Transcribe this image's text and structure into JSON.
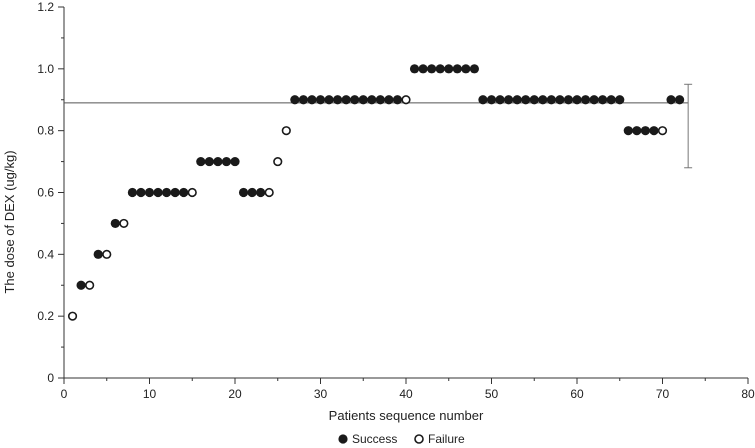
{
  "chart_data": {
    "type": "scatter",
    "xlabel": "Patients sequence number",
    "ylabel": "The dose of DEX (ug/kg)",
    "xlim": [
      0,
      80
    ],
    "ylim": [
      0,
      1.2
    ],
    "x_ticks": [
      0,
      10,
      20,
      30,
      40,
      50,
      60,
      70,
      80
    ],
    "y_ticks": [
      0,
      0.2,
      0.4,
      0.6,
      0.8,
      1.0,
      1.2
    ],
    "x_tick_labels": [
      "0",
      "10",
      "20",
      "30",
      "40",
      "50",
      "60",
      "70",
      "80"
    ],
    "y_tick_labels": [
      "0",
      "0.2",
      "0.4",
      "0.6",
      "0.8",
      "1.0",
      "1.2"
    ],
    "grid": false,
    "legend_position": "bottom-center",
    "reference_line": {
      "y": 0.89,
      "x_range": [
        0,
        73
      ]
    },
    "error_bar": {
      "x": 73,
      "center": 0.89,
      "low": 0.68,
      "high": 0.95
    },
    "series": [
      {
        "name": "Success",
        "marker": "filled-circle",
        "color": "#1a1a1a",
        "points": [
          [
            2,
            0.3
          ],
          [
            4,
            0.4
          ],
          [
            6,
            0.5
          ],
          [
            8,
            0.6
          ],
          [
            9,
            0.6
          ],
          [
            10,
            0.6
          ],
          [
            11,
            0.6
          ],
          [
            12,
            0.6
          ],
          [
            13,
            0.6
          ],
          [
            14,
            0.6
          ],
          [
            16,
            0.7
          ],
          [
            17,
            0.7
          ],
          [
            18,
            0.7
          ],
          [
            19,
            0.7
          ],
          [
            20,
            0.7
          ],
          [
            21,
            0.6
          ],
          [
            22,
            0.6
          ],
          [
            23,
            0.6
          ],
          [
            27,
            0.9
          ],
          [
            28,
            0.9
          ],
          [
            29,
            0.9
          ],
          [
            30,
            0.9
          ],
          [
            31,
            0.9
          ],
          [
            32,
            0.9
          ],
          [
            33,
            0.9
          ],
          [
            34,
            0.9
          ],
          [
            35,
            0.9
          ],
          [
            36,
            0.9
          ],
          [
            37,
            0.9
          ],
          [
            38,
            0.9
          ],
          [
            39,
            0.9
          ],
          [
            41,
            1.0
          ],
          [
            42,
            1.0
          ],
          [
            43,
            1.0
          ],
          [
            44,
            1.0
          ],
          [
            45,
            1.0
          ],
          [
            46,
            1.0
          ],
          [
            47,
            1.0
          ],
          [
            48,
            1.0
          ],
          [
            49,
            0.9
          ],
          [
            50,
            0.9
          ],
          [
            51,
            0.9
          ],
          [
            52,
            0.9
          ],
          [
            53,
            0.9
          ],
          [
            54,
            0.9
          ],
          [
            55,
            0.9
          ],
          [
            56,
            0.9
          ],
          [
            57,
            0.9
          ],
          [
            58,
            0.9
          ],
          [
            59,
            0.9
          ],
          [
            60,
            0.9
          ],
          [
            61,
            0.9
          ],
          [
            62,
            0.9
          ],
          [
            63,
            0.9
          ],
          [
            64,
            0.9
          ],
          [
            65,
            0.9
          ],
          [
            66,
            0.8
          ],
          [
            67,
            0.8
          ],
          [
            68,
            0.8
          ],
          [
            69,
            0.8
          ],
          [
            71,
            0.9
          ],
          [
            72,
            0.9
          ]
        ]
      },
      {
        "name": "Failure",
        "marker": "open-circle",
        "color": "#1a1a1a",
        "points": [
          [
            1,
            0.2
          ],
          [
            3,
            0.3
          ],
          [
            5,
            0.4
          ],
          [
            7,
            0.5
          ],
          [
            15,
            0.6
          ],
          [
            24,
            0.6
          ],
          [
            25,
            0.7
          ],
          [
            26,
            0.8
          ],
          [
            40,
            0.9
          ],
          [
            70,
            0.8
          ]
        ]
      }
    ]
  }
}
